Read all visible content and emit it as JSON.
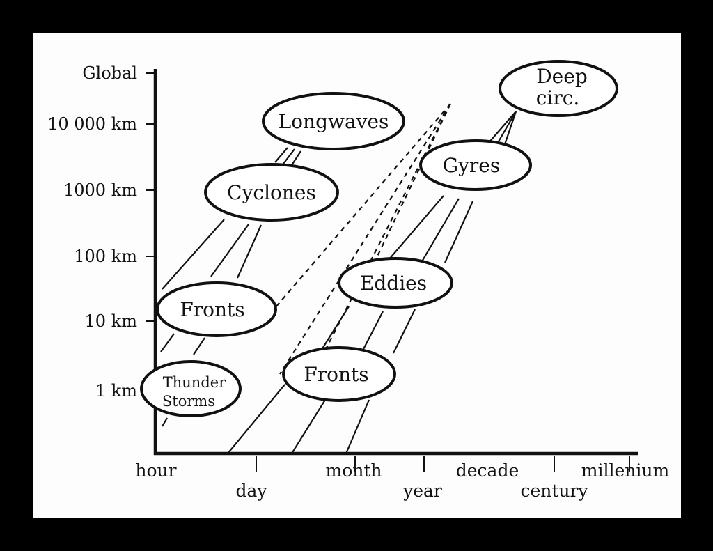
{
  "y_axis": {
    "ticks": [
      "Global",
      "10 000 km",
      "1000 km",
      "100 km",
      "10 km",
      "1 km"
    ]
  },
  "x_axis": {
    "ticks_upper": [
      "hour",
      "month",
      "decade",
      "millenium"
    ],
    "ticks_lower": [
      "day",
      "year",
      "century"
    ]
  },
  "phenomena": [
    {
      "id": "longwaves",
      "lines": [
        "Longwaves"
      ]
    },
    {
      "id": "cyclones",
      "lines": [
        "Cyclones"
      ]
    },
    {
      "id": "fronts-atmosphere",
      "lines": [
        "Fronts"
      ]
    },
    {
      "id": "thunderstorms",
      "lines": [
        "Thunder",
        "Storms"
      ]
    },
    {
      "id": "deep-circulation",
      "lines": [
        "Deep",
        "circ."
      ]
    },
    {
      "id": "gyres",
      "lines": [
        "Gyres"
      ]
    },
    {
      "id": "eddies",
      "lines": [
        "Eddies"
      ]
    },
    {
      "id": "fronts-ocean",
      "lines": [
        "Fronts"
      ]
    }
  ],
  "colors": {
    "outer_border": "#000000",
    "background": "#fdfdfd",
    "ink": "#111111"
  }
}
